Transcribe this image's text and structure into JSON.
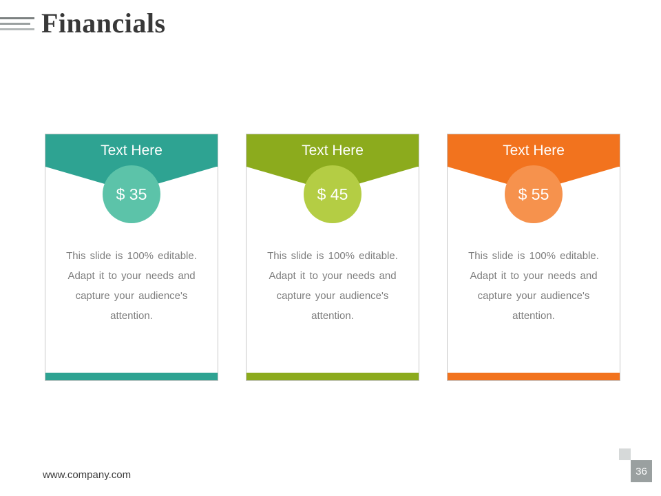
{
  "slide": {
    "title": "Financials",
    "footer": "www.company.com",
    "page_number": "36",
    "header_icon": "menu-lines-icon",
    "page_badge_bg": "#9aa0a0"
  },
  "cards": [
    {
      "header": "Text Here",
      "price": "$ 35",
      "body": "This slide is 100% editable. Adapt it to your needs and capture your audience's attention.",
      "color": "#2ea392",
      "circle_color": "#5cc3a9"
    },
    {
      "header": "Text Here",
      "price": "$ 45",
      "body": "This slide is 100% editable. Adapt it to your needs and capture your audience's attention.",
      "color": "#8cab1d",
      "circle_color": "#b4cd44"
    },
    {
      "header": "Text Here",
      "price": "$ 55",
      "body": "This slide is 100% editable. Adapt it to your needs and capture your audience's attention.",
      "color": "#f2731e",
      "circle_color": "#f6924d"
    }
  ]
}
